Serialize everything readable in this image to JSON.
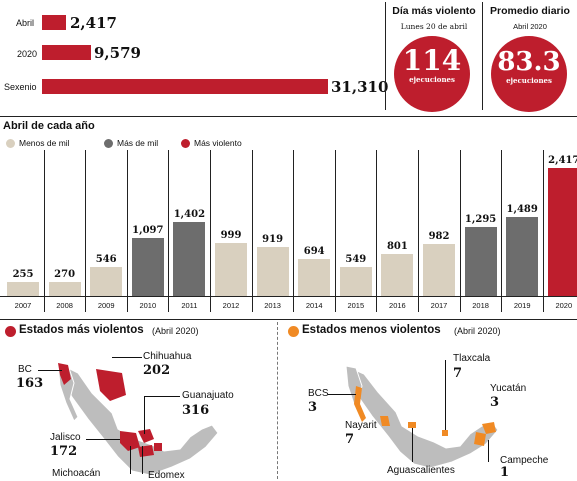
{
  "summary": {
    "rows": [
      {
        "label": "Abril",
        "value": 2417,
        "value_text": "2,417"
      },
      {
        "label": "2020",
        "value": 9579,
        "value_text": "9,579"
      },
      {
        "label": "Sexenio",
        "value": 31310,
        "value_text": "31,310"
      }
    ]
  },
  "violent_day": {
    "title": "Día más violento",
    "subtitle": "Lunes 20 de abril",
    "value": "114",
    "unit": "ejecuciones"
  },
  "daily_avg": {
    "title": "Promedio diario",
    "subtitle": "Abril 2020",
    "value": "83.3",
    "unit": "ejecuciones"
  },
  "chart_title": "Abril de cada año",
  "legend": [
    {
      "label": "Menos de mil",
      "color": "#d9d0bf"
    },
    {
      "label": "Más de mil",
      "color": "#6d6d6d"
    },
    {
      "label": "Más violento",
      "color": "#be1e2d"
    }
  ],
  "chart_data": {
    "type": "bar",
    "categories": [
      "2007",
      "2008",
      "2009",
      "2010",
      "2011",
      "2012",
      "2013",
      "2014",
      "2015",
      "2016",
      "2017",
      "2018",
      "2019",
      "2020"
    ],
    "values": [
      255,
      270,
      546,
      1097,
      1402,
      999,
      919,
      694,
      549,
      801,
      982,
      1295,
      1489,
      2417
    ],
    "value_labels": [
      "255",
      "270",
      "546",
      "1,097",
      "1,402",
      "999",
      "919",
      "694",
      "549",
      "801",
      "982",
      "1,295",
      "1,489",
      "2,417"
    ],
    "colors": [
      "#d9d0bf",
      "#d9d0bf",
      "#d9d0bf",
      "#6d6d6d",
      "#6d6d6d",
      "#d9d0bf",
      "#d9d0bf",
      "#d9d0bf",
      "#d9d0bf",
      "#d9d0bf",
      "#d9d0bf",
      "#6d6d6d",
      "#6d6d6d",
      "#be1e2d"
    ],
    "ylim": [
      0,
      2417
    ]
  },
  "most_violent": {
    "title": "Estados más violentos",
    "subtitle": "(Abril 2020)",
    "states": [
      {
        "name": "BC",
        "value": "163"
      },
      {
        "name": "Chihuahua",
        "value": "202"
      },
      {
        "name": "Guanajuato",
        "value": "316"
      },
      {
        "name": "Jalisco",
        "value": "172"
      },
      {
        "name": "Michoacán",
        "value": ""
      },
      {
        "name": "Edomex",
        "value": ""
      }
    ]
  },
  "least_violent": {
    "title": "Estados menos violentos",
    "subtitle": "(Abril 2020)",
    "states": [
      {
        "name": "BCS",
        "value": "3"
      },
      {
        "name": "Tlaxcala",
        "value": "7"
      },
      {
        "name": "Yucatán",
        "value": "3"
      },
      {
        "name": "Nayarit",
        "value": "7"
      },
      {
        "name": "Aguascalientes",
        "value": ""
      },
      {
        "name": "Campeche",
        "value": "1"
      }
    ]
  }
}
